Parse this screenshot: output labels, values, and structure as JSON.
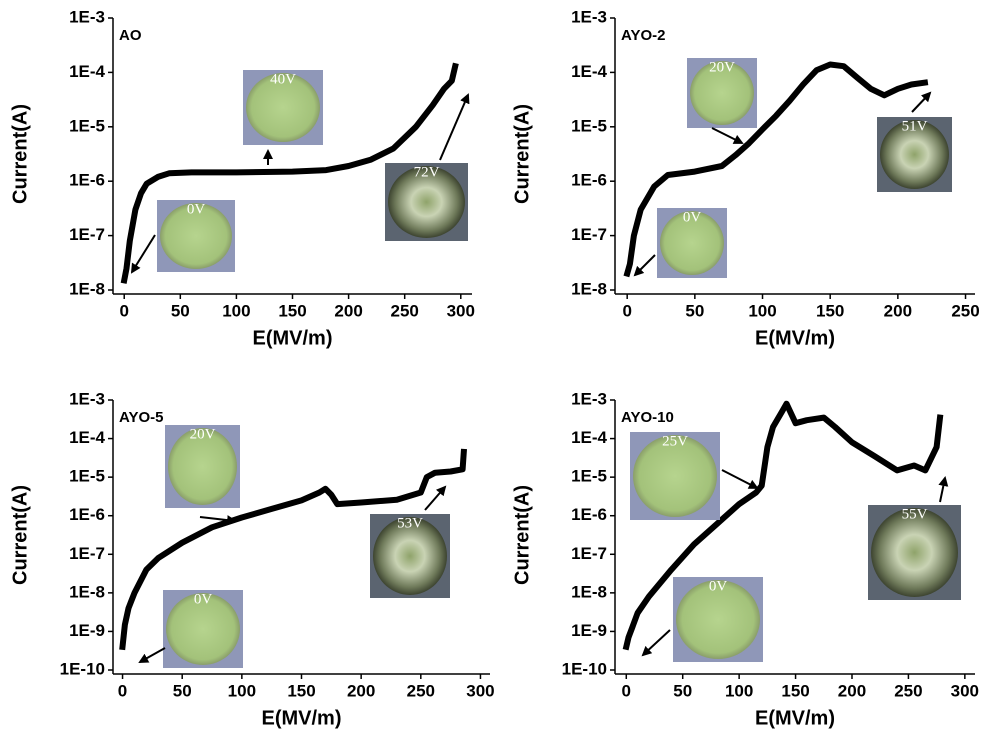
{
  "chart_data": [
    {
      "type": "line",
      "title": "AO",
      "x_label": "E(MV/m)",
      "y_label": "Current(A)",
      "log_y": true,
      "color": "#000000",
      "xlim": [
        -10,
        310
      ],
      "xticks": [
        0,
        50,
        100,
        150,
        200,
        250,
        300
      ],
      "ylim": [
        1e-08,
        0.001
      ],
      "yticks": [
        {
          "value": 1e-08,
          "label": "1E-8"
        },
        {
          "value": 1e-07,
          "label": "1E-7"
        },
        {
          "value": 1e-06,
          "label": "1E-6"
        },
        {
          "value": 1e-05,
          "label": "1E-5"
        },
        {
          "value": 0.0001,
          "label": "1E-4"
        },
        {
          "value": 0.001,
          "label": "1E-3"
        }
      ],
      "x": [
        0,
        2,
        5,
        10,
        15,
        20,
        30,
        40,
        60,
        100,
        150,
        180,
        200,
        220,
        240,
        260,
        275,
        285,
        292,
        295
      ],
      "values": [
        1.5e-08,
        2.5e-08,
        8e-08,
        3e-07,
        6e-07,
        9e-07,
        1.2e-06,
        1.4e-06,
        1.45e-06,
        1.45e-06,
        1.5e-06,
        1.6e-06,
        1.9e-06,
        2.5e-06,
        4e-06,
        1e-05,
        2.5e-05,
        5e-05,
        7e-05,
        0.00013
      ],
      "insets": [
        {
          "label": "0V"
        },
        {
          "label": "40V"
        },
        {
          "label": "72V"
        }
      ]
    },
    {
      "type": "line",
      "title": "AYO-2",
      "x_label": "E(MV/m)",
      "y_label": "Current(A)",
      "log_y": true,
      "color": "#000000",
      "xlim": [
        -9,
        257
      ],
      "xticks": [
        0,
        50,
        100,
        150,
        200,
        250
      ],
      "ylim": [
        1e-08,
        0.001
      ],
      "yticks": [
        {
          "value": 1e-08,
          "label": "1E-8"
        },
        {
          "value": 1e-07,
          "label": "1E-7"
        },
        {
          "value": 1e-06,
          "label": "1E-6"
        },
        {
          "value": 1e-05,
          "label": "1E-5"
        },
        {
          "value": 0.0001,
          "label": "1E-4"
        },
        {
          "value": 0.001,
          "label": "1E-3"
        }
      ],
      "x": [
        0,
        2,
        5,
        10,
        20,
        30,
        50,
        70,
        80,
        90,
        100,
        110,
        120,
        130,
        140,
        150,
        160,
        170,
        180,
        190,
        200,
        210,
        220
      ],
      "values": [
        2e-08,
        3e-08,
        1e-07,
        3e-07,
        8e-07,
        1.3e-06,
        1.5e-06,
        1.9e-06,
        3e-06,
        5e-06,
        9e-06,
        1.6e-05,
        3e-05,
        6e-05,
        0.00011,
        0.00014,
        0.00013,
        8e-05,
        5e-05,
        3.8e-05,
        5e-05,
        6e-05,
        6.5e-05
      ],
      "insets": [
        {
          "label": "20V"
        },
        {
          "label": "51V"
        },
        {
          "label": "0V"
        }
      ]
    },
    {
      "type": "line",
      "title": "AYO-5",
      "x_label": "E(MV/m)",
      "y_label": "Current(A)",
      "log_y": true,
      "color": "#000000",
      "xlim": [
        -8,
        308
      ],
      "xticks": [
        0,
        50,
        100,
        150,
        200,
        250,
        300
      ],
      "ylim": [
        1e-10,
        0.001
      ],
      "yticks": [
        {
          "value": 1e-10,
          "label": "1E-10"
        },
        {
          "value": 1e-09,
          "label": "1E-9"
        },
        {
          "value": 1e-08,
          "label": "1E-8"
        },
        {
          "value": 1e-07,
          "label": "1E-7"
        },
        {
          "value": 1e-06,
          "label": "1E-6"
        },
        {
          "value": 1e-05,
          "label": "1E-5"
        },
        {
          "value": 0.0001,
          "label": "1E-4"
        },
        {
          "value": 0.001,
          "label": "1E-3"
        }
      ],
      "x": [
        0,
        2,
        5,
        10,
        20,
        30,
        50,
        75,
        100,
        125,
        150,
        165,
        170,
        175,
        180,
        200,
        230,
        250,
        255,
        262,
        275,
        285,
        286
      ],
      "values": [
        4e-10,
        1.5e-09,
        4e-09,
        1e-08,
        4e-08,
        8e-08,
        2e-07,
        5e-07,
        9e-07,
        1.5e-06,
        2.5e-06,
        4e-06,
        5e-06,
        3.5e-06,
        2e-06,
        2.2e-06,
        2.6e-06,
        4e-06,
        1e-05,
        1.3e-05,
        1.4e-05,
        1.6e-05,
        4.5e-05
      ],
      "insets": [
        {
          "label": "20V"
        },
        {
          "label": "53V"
        },
        {
          "label": "0V"
        }
      ]
    },
    {
      "type": "line",
      "title": "AYO-10",
      "x_label": "E(MV/m)",
      "y_label": "Current(A)",
      "log_y": true,
      "color": "#000000",
      "xlim": [
        -10,
        309
      ],
      "xticks": [
        0,
        50,
        100,
        150,
        200,
        250,
        300
      ],
      "ylim": [
        1e-10,
        0.001
      ],
      "yticks": [
        {
          "value": 1e-10,
          "label": "1E-10"
        },
        {
          "value": 1e-09,
          "label": "1E-9"
        },
        {
          "value": 1e-08,
          "label": "1E-8"
        },
        {
          "value": 1e-07,
          "label": "1E-7"
        },
        {
          "value": 1e-06,
          "label": "1E-6"
        },
        {
          "value": 1e-05,
          "label": "1E-5"
        },
        {
          "value": 0.0001,
          "label": "1E-4"
        },
        {
          "value": 0.001,
          "label": "1E-3"
        }
      ],
      "x": [
        0,
        2,
        5,
        10,
        20,
        40,
        60,
        80,
        100,
        115,
        120,
        125,
        130,
        138,
        142,
        150,
        160,
        175,
        185,
        200,
        220,
        240,
        255,
        265,
        270,
        275,
        278
      ],
      "values": [
        4e-10,
        7e-10,
        1.2e-09,
        3e-09,
        8e-09,
        4e-08,
        1.8e-07,
        6e-07,
        2e-06,
        4e-06,
        6e-06,
        6e-05,
        0.0002,
        0.0005,
        0.0008,
        0.00025,
        0.0003,
        0.00035,
        0.0002,
        8e-05,
        3.5e-05,
        1.5e-05,
        2e-05,
        1.5e-05,
        3e-05,
        6e-05,
        0.00035
      ],
      "insets": [
        {
          "label": "25V"
        },
        {
          "label": "55V"
        },
        {
          "label": "0V"
        }
      ]
    }
  ]
}
